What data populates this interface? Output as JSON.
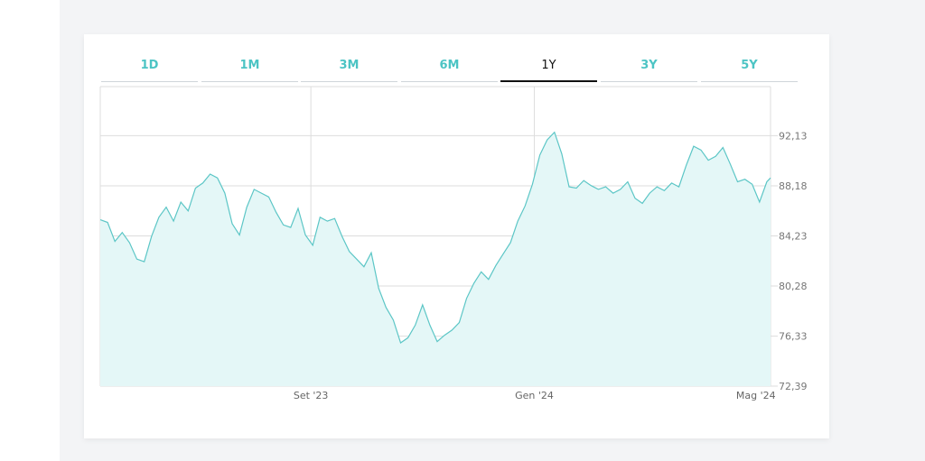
{
  "tabs": [
    {
      "label": "1D",
      "active": false
    },
    {
      "label": "1M",
      "active": false
    },
    {
      "label": "3M",
      "active": false
    },
    {
      "label": "6M",
      "active": false
    },
    {
      "label": "1Y",
      "active": true
    },
    {
      "label": "3Y",
      "active": false
    },
    {
      "label": "5Y",
      "active": false
    }
  ],
  "colors": {
    "line": "#5cc6c6",
    "area": "#e4f7f7",
    "grid": "#dddddd",
    "tab_accent": "#4cc4c4",
    "tab_active": "#111111"
  },
  "chart_data": {
    "type": "area",
    "title": "",
    "xlabel": "",
    "ylabel": "",
    "ylim": [
      72.39,
      96.0
    ],
    "y_ticks": [
      "92,13",
      "88,18",
      "84,23",
      "80,28",
      "76,33",
      "72,39"
    ],
    "y_tick_values": [
      92.13,
      88.18,
      84.23,
      80.28,
      76.33,
      72.39
    ],
    "x_ticks": [
      "Set '23",
      "Gen '24",
      "Mag '24"
    ],
    "x_tick_dates": [
      "2023-09-01",
      "2024-01-01",
      "2024-05-01"
    ],
    "x_range": [
      "2023-05-09",
      "2024-05-09"
    ],
    "grid": true,
    "axis_position": "right",
    "series": [
      {
        "points": [
          [
            "2023-05-09",
            85.5
          ],
          [
            "2023-05-13",
            85.3
          ],
          [
            "2023-05-17",
            83.8
          ],
          [
            "2023-05-21",
            84.5
          ],
          [
            "2023-05-25",
            83.7
          ],
          [
            "2023-05-29",
            82.4
          ],
          [
            "2023-06-02",
            82.2
          ],
          [
            "2023-06-06",
            84.2
          ],
          [
            "2023-06-10",
            85.7
          ],
          [
            "2023-06-14",
            86.5
          ],
          [
            "2023-06-18",
            85.4
          ],
          [
            "2023-06-22",
            86.9
          ],
          [
            "2023-06-26",
            86.2
          ],
          [
            "2023-06-30",
            88.0
          ],
          [
            "2023-07-04",
            88.4
          ],
          [
            "2023-07-08",
            89.1
          ],
          [
            "2023-07-12",
            88.8
          ],
          [
            "2023-07-16",
            87.6
          ],
          [
            "2023-07-20",
            85.2
          ],
          [
            "2023-07-24",
            84.3
          ],
          [
            "2023-07-28",
            86.5
          ],
          [
            "2023-08-01",
            87.9
          ],
          [
            "2023-08-05",
            87.6
          ],
          [
            "2023-08-09",
            87.3
          ],
          [
            "2023-08-13",
            86.1
          ],
          [
            "2023-08-17",
            85.1
          ],
          [
            "2023-08-21",
            84.9
          ],
          [
            "2023-08-25",
            86.4
          ],
          [
            "2023-08-29",
            84.3
          ],
          [
            "2023-09-02",
            83.5
          ],
          [
            "2023-09-06",
            85.7
          ],
          [
            "2023-09-10",
            85.4
          ],
          [
            "2023-09-14",
            85.6
          ],
          [
            "2023-09-18",
            84.2
          ],
          [
            "2023-09-22",
            83.0
          ],
          [
            "2023-09-26",
            82.4
          ],
          [
            "2023-09-30",
            81.8
          ],
          [
            "2023-10-04",
            82.9
          ],
          [
            "2023-10-08",
            80.1
          ],
          [
            "2023-10-12",
            78.6
          ],
          [
            "2023-10-16",
            77.6
          ],
          [
            "2023-10-20",
            75.8
          ],
          [
            "2023-10-24",
            76.2
          ],
          [
            "2023-10-28",
            77.2
          ],
          [
            "2023-11-01",
            78.8
          ],
          [
            "2023-11-05",
            77.2
          ],
          [
            "2023-11-09",
            75.9
          ],
          [
            "2023-11-13",
            76.4
          ],
          [
            "2023-11-17",
            76.8
          ],
          [
            "2023-11-21",
            77.4
          ],
          [
            "2023-11-25",
            79.3
          ],
          [
            "2023-11-29",
            80.5
          ],
          [
            "2023-12-03",
            81.4
          ],
          [
            "2023-12-07",
            80.8
          ],
          [
            "2023-12-11",
            81.9
          ],
          [
            "2023-12-15",
            82.8
          ],
          [
            "2023-12-19",
            83.7
          ],
          [
            "2023-12-23",
            85.4
          ],
          [
            "2023-12-27",
            86.6
          ],
          [
            "2023-12-31",
            88.3
          ],
          [
            "2024-01-04",
            90.6
          ],
          [
            "2024-01-08",
            91.8
          ],
          [
            "2024-01-12",
            92.4
          ],
          [
            "2024-01-16",
            90.7
          ],
          [
            "2024-01-20",
            88.1
          ],
          [
            "2024-01-24",
            88.0
          ],
          [
            "2024-01-28",
            88.6
          ],
          [
            "2024-02-01",
            88.2
          ],
          [
            "2024-02-05",
            87.9
          ],
          [
            "2024-02-09",
            88.1
          ],
          [
            "2024-02-13",
            87.6
          ],
          [
            "2024-02-17",
            87.9
          ],
          [
            "2024-02-21",
            88.5
          ],
          [
            "2024-02-25",
            87.2
          ],
          [
            "2024-02-29",
            86.8
          ],
          [
            "2024-03-04",
            87.6
          ],
          [
            "2024-03-08",
            88.1
          ],
          [
            "2024-03-12",
            87.8
          ],
          [
            "2024-03-16",
            88.4
          ],
          [
            "2024-03-20",
            88.1
          ],
          [
            "2024-03-24",
            89.8
          ],
          [
            "2024-03-28",
            91.3
          ],
          [
            "2024-04-01",
            91.0
          ],
          [
            "2024-04-05",
            90.2
          ],
          [
            "2024-04-09",
            90.5
          ],
          [
            "2024-04-13",
            91.2
          ],
          [
            "2024-04-17",
            89.9
          ],
          [
            "2024-04-21",
            88.5
          ],
          [
            "2024-04-25",
            88.7
          ],
          [
            "2024-04-29",
            88.3
          ],
          [
            "2024-05-03",
            86.9
          ],
          [
            "2024-05-07",
            88.5
          ],
          [
            "2024-05-09",
            88.8
          ]
        ]
      }
    ]
  }
}
